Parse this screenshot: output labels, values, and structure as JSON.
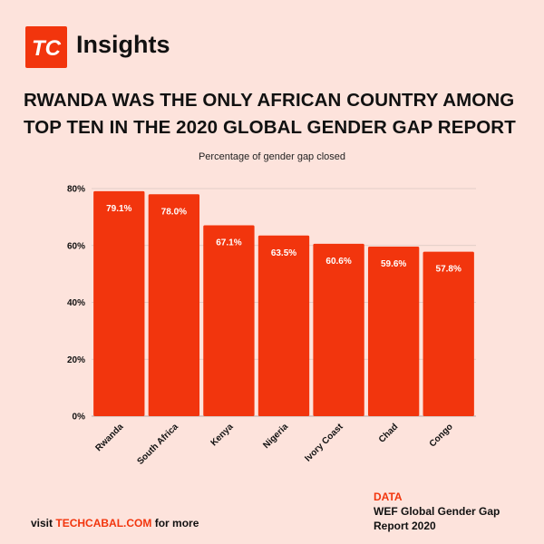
{
  "brand": {
    "logo_text": "TC",
    "name": "Insights"
  },
  "headline": "RWANDA WAS THE ONLY AFRICAN COUNTRY AMONG TOP TEN IN THE 2020 GLOBAL GENDER GAP REPORT",
  "colors": {
    "accent": "#f2350d",
    "background": "#fde3dc",
    "text": "#111111"
  },
  "chart_data": {
    "type": "bar",
    "title": "Percentage of gender gap closed",
    "categories": [
      "Rwanda",
      "South Africa",
      "Kenya",
      "Nigeria",
      "Ivory Coast",
      "Chad",
      "Congo"
    ],
    "values": [
      79.1,
      78.0,
      67.1,
      63.5,
      60.6,
      59.6,
      57.8
    ],
    "data_labels": [
      "79.1%",
      "78.0%",
      "67.1%",
      "63.5%",
      "60.6%",
      "59.6%",
      "57.8%"
    ],
    "ylim": [
      0,
      80
    ],
    "yticks": [
      0,
      20,
      40,
      60,
      80
    ],
    "ytick_labels": [
      "0%",
      "20%",
      "40%",
      "60%",
      "80%"
    ],
    "grid": true,
    "xlabel": "",
    "ylabel": ""
  },
  "footer": {
    "prefix": "visit ",
    "link": "TECHCABAL.COM",
    "suffix": " for more",
    "source_label": "DATA",
    "source_text": "WEF Global Gender Gap Report 2020"
  }
}
